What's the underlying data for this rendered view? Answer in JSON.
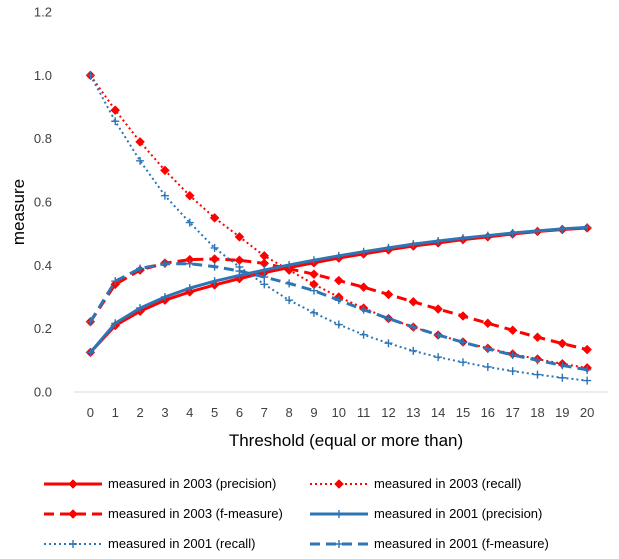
{
  "chart_data": {
    "type": "line",
    "title": "",
    "xlabel": "Threshold (equal or more than)",
    "ylabel": "measure",
    "x": [
      0,
      1,
      2,
      3,
      4,
      5,
      6,
      7,
      8,
      9,
      10,
      11,
      12,
      13,
      14,
      15,
      16,
      17,
      18,
      19,
      20
    ],
    "ylim": [
      0,
      1.2
    ],
    "yticks": [
      "0.0",
      "0.2",
      "0.4",
      "0.6",
      "0.8",
      "1.0",
      "1.2"
    ],
    "grid": false,
    "legend_position": "bottom",
    "series": [
      {
        "name": "measured in 2003 (precision)",
        "color": "#ff0000",
        "dash": "solid",
        "marker": "diamond",
        "values": [
          0.125,
          0.21,
          0.255,
          0.29,
          0.316,
          0.338,
          0.358,
          0.377,
          0.393,
          0.408,
          0.423,
          0.436,
          0.449,
          0.461,
          0.471,
          0.481,
          0.49,
          0.499,
          0.507,
          0.513,
          0.518
        ]
      },
      {
        "name": "measured in 2003 (recall)",
        "color": "#ff0000",
        "dash": "dotted",
        "marker": "diamond",
        "values": [
          1.0,
          0.89,
          0.79,
          0.7,
          0.62,
          0.55,
          0.49,
          0.43,
          0.385,
          0.34,
          0.3,
          0.265,
          0.232,
          0.205,
          0.18,
          0.158,
          0.138,
          0.12,
          0.104,
          0.089,
          0.076
        ]
      },
      {
        "name": "measured in 2003 (f-measure)",
        "color": "#ff0000",
        "dash": "dashed",
        "marker": "diamond",
        "values": [
          0.222,
          0.34,
          0.385,
          0.407,
          0.418,
          0.42,
          0.416,
          0.406,
          0.389,
          0.372,
          0.352,
          0.331,
          0.308,
          0.285,
          0.262,
          0.24,
          0.217,
          0.195,
          0.173,
          0.153,
          0.134
        ]
      },
      {
        "name": "measured in 2001 (precision)",
        "color": "#2e75b6",
        "dash": "solid",
        "marker": "plus",
        "values": [
          0.125,
          0.217,
          0.265,
          0.3,
          0.328,
          0.35,
          0.368,
          0.385,
          0.401,
          0.416,
          0.43,
          0.443,
          0.455,
          0.467,
          0.477,
          0.486,
          0.494,
          0.502,
          0.509,
          0.515,
          0.52
        ]
      },
      {
        "name": "measured in 2001 (recall)",
        "color": "#2e75b6",
        "dash": "dotted",
        "marker": "plus",
        "values": [
          1.0,
          0.855,
          0.73,
          0.62,
          0.535,
          0.455,
          0.395,
          0.34,
          0.29,
          0.25,
          0.213,
          0.181,
          0.154,
          0.13,
          0.11,
          0.094,
          0.079,
          0.066,
          0.055,
          0.045,
          0.036
        ]
      },
      {
        "name": "measured in 2001 (f-measure)",
        "color": "#2e75b6",
        "dash": "dashed",
        "marker": "plus",
        "values": [
          0.222,
          0.35,
          0.39,
          0.405,
          0.405,
          0.396,
          0.382,
          0.363,
          0.343,
          0.32,
          0.29,
          0.26,
          0.232,
          0.205,
          0.18,
          0.157,
          0.136,
          0.117,
          0.1,
          0.084,
          0.07
        ]
      }
    ]
  }
}
